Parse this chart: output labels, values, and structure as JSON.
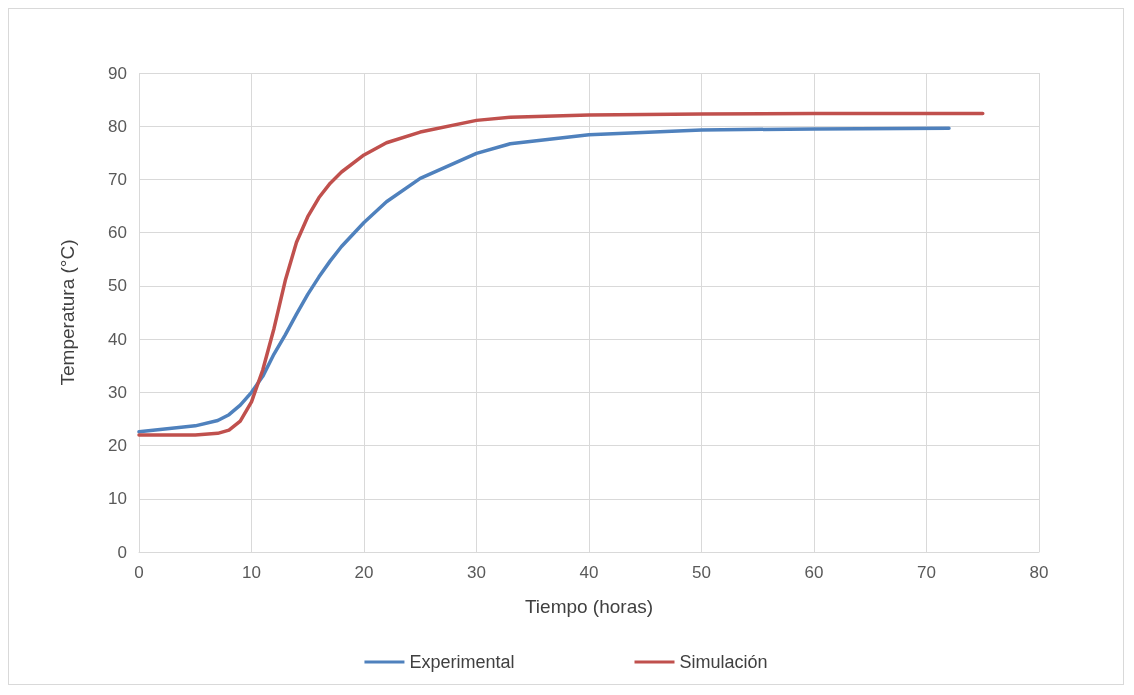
{
  "chart_data": {
    "type": "line",
    "xlabel": "Tiempo (horas)",
    "ylabel": "Temperatura (°C)",
    "xlim": [
      0,
      80
    ],
    "xticks": [
      0,
      10,
      20,
      30,
      40,
      50,
      60,
      70,
      80
    ],
    "ylim": [
      0,
      90
    ],
    "yticks": [
      0,
      10,
      20,
      30,
      40,
      50,
      60,
      70,
      80,
      90
    ],
    "grid": true,
    "legend": "bottom",
    "marker": "none",
    "line_style": "solid",
    "series": [
      {
        "name": "Experimental",
        "color": "#4f81bd",
        "x": [
          0,
          5,
          7,
          8,
          9,
          10,
          11,
          12,
          13,
          14,
          15,
          16,
          17,
          18,
          20,
          22,
          25,
          30,
          33,
          40,
          50,
          60,
          72
        ],
        "values": [
          22.6,
          23.7,
          24.7,
          25.8,
          27.6,
          30,
          33,
          37.2,
          40.8,
          44.7,
          48.4,
          51.7,
          54.7,
          57.4,
          61.9,
          65.8,
          70.2,
          74.9,
          76.7,
          78.4,
          79.3,
          79.5,
          79.6
        ]
      },
      {
        "name": "Simulación",
        "color": "#c0504d",
        "x": [
          0,
          5,
          7,
          8,
          9,
          10,
          11,
          12,
          13,
          14,
          15,
          16,
          17,
          18,
          20,
          22,
          25,
          30,
          33,
          40,
          50,
          60,
          75
        ],
        "values": [
          22,
          22,
          22.3,
          22.9,
          24.6,
          28.2,
          34.2,
          42,
          51,
          58.2,
          63,
          66.6,
          69.3,
          71.4,
          74.6,
          76.9,
          78.9,
          81.1,
          81.7,
          82.1,
          82.3,
          82.4,
          82.4
        ]
      }
    ]
  }
}
